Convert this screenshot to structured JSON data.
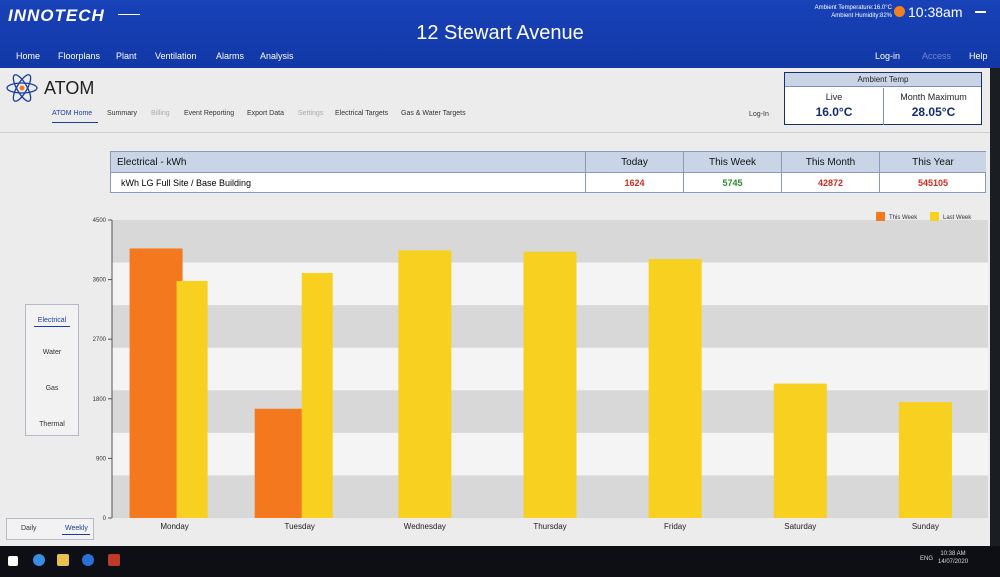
{
  "header": {
    "logo": "INNOTECH",
    "site_title": "12 Stewart Avenue",
    "ambient_temperature": "Ambient Temperature:16.0°C",
    "ambient_humidity": "Ambient Humidity:82%",
    "clock": "10:38am",
    "nav": [
      "Home",
      "Floorplans",
      "Plant",
      "Ventilation",
      "Alarms",
      "Analysis"
    ],
    "nav_right": [
      "Log-in",
      "Access",
      "Help"
    ]
  },
  "app": {
    "title": "ATOM",
    "subnav": [
      "ATOM Home",
      "Summary",
      "Billing",
      "Event Reporting",
      "Export Data",
      "Settings",
      "Electrical Targets",
      "Gas & Water Targets"
    ],
    "login": "Log-In"
  },
  "ambient_panel": {
    "title": "Ambient Temp",
    "live_label": "Live",
    "live_value": "16.0°C",
    "max_label": "Month Maximum",
    "max_value": "28.05°C"
  },
  "summary": {
    "header_label": "Electrical - kWh",
    "columns": [
      "Today",
      "This Week",
      "This Month",
      "This Year"
    ],
    "row_label": "kWh LG Full Site / Base Building",
    "values": [
      "1624",
      "5745",
      "42872",
      "545105"
    ],
    "value_colors": [
      "#d02a20",
      "#2c8a2c",
      "#d02a20",
      "#d02a20"
    ]
  },
  "side_tabs": [
    "Electrical",
    "Water",
    "Gas",
    "Thermal"
  ],
  "period_tabs": [
    "Daily",
    "Weekly"
  ],
  "chart_data": {
    "type": "bar",
    "categories": [
      "Monday",
      "Tuesday",
      "Wednesday",
      "Thursday",
      "Friday",
      "Saturday",
      "Sunday"
    ],
    "series": [
      {
        "name": "This Week",
        "color": "#f4781e",
        "values": [
          4070,
          1650,
          null,
          null,
          null,
          null,
          null
        ]
      },
      {
        "name": "Last Week",
        "color": "#f8d020",
        "values": [
          3580,
          3700,
          4040,
          4020,
          3910,
          2030,
          1750
        ]
      }
    ],
    "yticks": [
      "0",
      "900",
      "1800",
      "2700",
      "3600",
      "4500"
    ],
    "ylim": [
      0,
      4500
    ],
    "legend_position": "top-right",
    "grid": true
  },
  "taskbar": {
    "lang": "ENG",
    "time": "10:38 AM",
    "date": "14/07/2020"
  }
}
